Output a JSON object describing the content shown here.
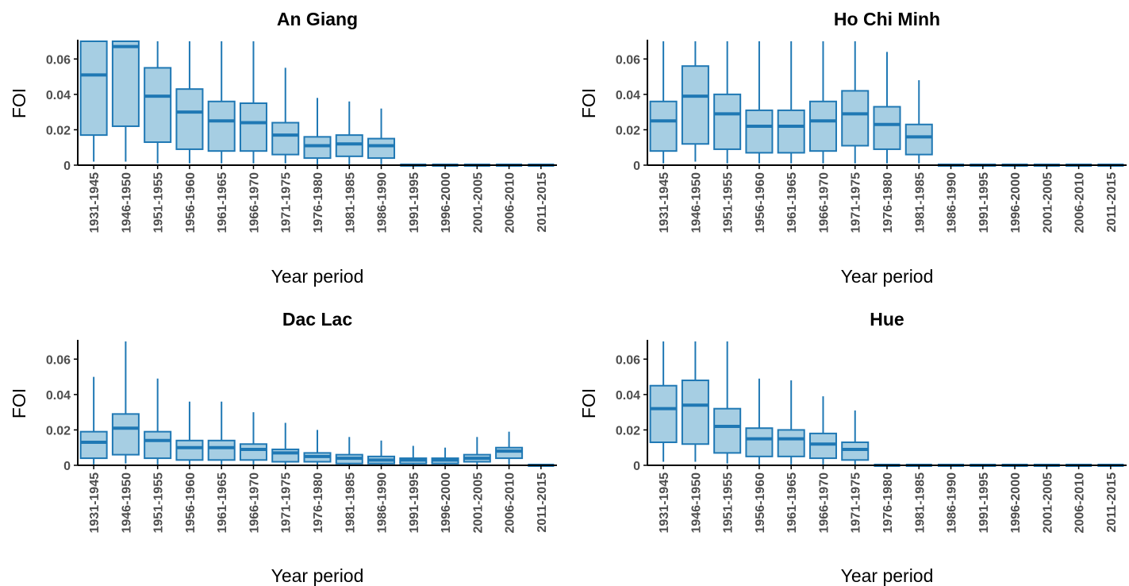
{
  "chart_data": [
    {
      "type": "boxplot",
      "title": "An Giang",
      "xlabel": "Year period",
      "ylabel": "FOI",
      "ylim": [
        0,
        0.07
      ],
      "yticks": [
        0,
        0.02,
        0.04,
        0.06
      ],
      "ytick_labels": [
        "0",
        "0.02",
        "0.04",
        "0.06"
      ],
      "box_fill": "#a6cee3",
      "box_line": "#1f78b4",
      "categories": [
        "1931-1945",
        "1946-1950",
        "1951-1955",
        "1956-1960",
        "1961-1965",
        "1966-1970",
        "1971-1975",
        "1976-1980",
        "1981-1985",
        "1986-1990",
        "1991-1995",
        "1996-2000",
        "2001-2005",
        "2006-2010",
        "2011-2015"
      ],
      "boxes": [
        {
          "min": 0.002,
          "q1": 0.017,
          "median": 0.051,
          "q3": 0.07,
          "max": 0.07
        },
        {
          "min": 0.002,
          "q1": 0.022,
          "median": 0.067,
          "q3": 0.07,
          "max": 0.07
        },
        {
          "min": 0.001,
          "q1": 0.013,
          "median": 0.039,
          "q3": 0.055,
          "max": 0.07
        },
        {
          "min": 0.001,
          "q1": 0.009,
          "median": 0.03,
          "q3": 0.043,
          "max": 0.07
        },
        {
          "min": 0.001,
          "q1": 0.008,
          "median": 0.025,
          "q3": 0.036,
          "max": 0.07
        },
        {
          "min": 0.001,
          "q1": 0.008,
          "median": 0.024,
          "q3": 0.035,
          "max": 0.07
        },
        {
          "min": 0.001,
          "q1": 0.006,
          "median": 0.017,
          "q3": 0.024,
          "max": 0.055
        },
        {
          "min": 0.0005,
          "q1": 0.004,
          "median": 0.011,
          "q3": 0.016,
          "max": 0.038
        },
        {
          "min": 0.0005,
          "q1": 0.005,
          "median": 0.012,
          "q3": 0.017,
          "max": 0.036
        },
        {
          "min": 0.0005,
          "q1": 0.004,
          "median": 0.011,
          "q3": 0.015,
          "max": 0.032
        },
        {
          "min": 0,
          "q1": 0,
          "median": 0,
          "q3": 0,
          "max": 0
        },
        {
          "min": 0,
          "q1": 0,
          "median": 0,
          "q3": 0,
          "max": 0
        },
        {
          "min": 0,
          "q1": 0,
          "median": 0,
          "q3": 0,
          "max": 0
        },
        {
          "min": 0,
          "q1": 0,
          "median": 0,
          "q3": 0,
          "max": 0
        },
        {
          "min": 0,
          "q1": 0,
          "median": 0,
          "q3": 0,
          "max": 0
        }
      ]
    },
    {
      "type": "boxplot",
      "title": "Ho Chi Minh",
      "xlabel": "Year period",
      "ylabel": "FOI",
      "ylim": [
        0,
        0.07
      ],
      "yticks": [
        0,
        0.02,
        0.04,
        0.06
      ],
      "ytick_labels": [
        "0",
        "0.02",
        "0.04",
        "0.06"
      ],
      "box_fill": "#a6cee3",
      "box_line": "#1f78b4",
      "categories": [
        "1931-1945",
        "1946-1950",
        "1951-1955",
        "1956-1960",
        "1961-1965",
        "1966-1970",
        "1971-1975",
        "1976-1980",
        "1981-1985",
        "1986-1990",
        "1991-1995",
        "1996-2000",
        "2001-2005",
        "2006-2010",
        "2011-2015"
      ],
      "boxes": [
        {
          "min": 0.001,
          "q1": 0.008,
          "median": 0.025,
          "q3": 0.036,
          "max": 0.07
        },
        {
          "min": 0.002,
          "q1": 0.012,
          "median": 0.039,
          "q3": 0.056,
          "max": 0.07
        },
        {
          "min": 0.001,
          "q1": 0.009,
          "median": 0.029,
          "q3": 0.04,
          "max": 0.07
        },
        {
          "min": 0.001,
          "q1": 0.007,
          "median": 0.022,
          "q3": 0.031,
          "max": 0.07
        },
        {
          "min": 0.001,
          "q1": 0.007,
          "median": 0.022,
          "q3": 0.031,
          "max": 0.07
        },
        {
          "min": 0.001,
          "q1": 0.008,
          "median": 0.025,
          "q3": 0.036,
          "max": 0.07
        },
        {
          "min": 0.001,
          "q1": 0.011,
          "median": 0.029,
          "q3": 0.042,
          "max": 0.07
        },
        {
          "min": 0.001,
          "q1": 0.009,
          "median": 0.023,
          "q3": 0.033,
          "max": 0.064
        },
        {
          "min": 0.001,
          "q1": 0.006,
          "median": 0.016,
          "q3": 0.023,
          "max": 0.048
        },
        {
          "min": 0,
          "q1": 0,
          "median": 0,
          "q3": 0,
          "max": 0
        },
        {
          "min": 0,
          "q1": 0,
          "median": 0,
          "q3": 0,
          "max": 0
        },
        {
          "min": 0,
          "q1": 0,
          "median": 0,
          "q3": 0,
          "max": 0
        },
        {
          "min": 0,
          "q1": 0,
          "median": 0,
          "q3": 0,
          "max": 0
        },
        {
          "min": 0,
          "q1": 0,
          "median": 0,
          "q3": 0,
          "max": 0
        },
        {
          "min": 0,
          "q1": 0,
          "median": 0,
          "q3": 0,
          "max": 0
        }
      ]
    },
    {
      "type": "boxplot",
      "title": "Dac Lac",
      "xlabel": "Year period",
      "ylabel": "FOI",
      "ylim": [
        0,
        0.07
      ],
      "yticks": [
        0,
        0.02,
        0.04,
        0.06
      ],
      "ytick_labels": [
        "0",
        "0.02",
        "0.04",
        "0.06"
      ],
      "box_fill": "#a6cee3",
      "box_line": "#1f78b4",
      "categories": [
        "1931-1945",
        "1946-1950",
        "1951-1955",
        "1956-1960",
        "1961-1965",
        "1966-1970",
        "1971-1975",
        "1976-1980",
        "1981-1985",
        "1986-1990",
        "1991-1995",
        "1996-2000",
        "2001-2005",
        "2006-2010",
        "2011-2015"
      ],
      "boxes": [
        {
          "min": 0.0005,
          "q1": 0.004,
          "median": 0.013,
          "q3": 0.019,
          "max": 0.05
        },
        {
          "min": 0.001,
          "q1": 0.006,
          "median": 0.021,
          "q3": 0.029,
          "max": 0.07
        },
        {
          "min": 0.0005,
          "q1": 0.004,
          "median": 0.014,
          "q3": 0.019,
          "max": 0.049
        },
        {
          "min": 0.0005,
          "q1": 0.003,
          "median": 0.01,
          "q3": 0.014,
          "max": 0.036
        },
        {
          "min": 0.0005,
          "q1": 0.003,
          "median": 0.01,
          "q3": 0.014,
          "max": 0.036
        },
        {
          "min": 0.0005,
          "q1": 0.003,
          "median": 0.009,
          "q3": 0.012,
          "max": 0.03
        },
        {
          "min": 0.0003,
          "q1": 0.002,
          "median": 0.007,
          "q3": 0.009,
          "max": 0.024
        },
        {
          "min": 0.0003,
          "q1": 0.002,
          "median": 0.005,
          "q3": 0.007,
          "max": 0.02
        },
        {
          "min": 0.0002,
          "q1": 0.001,
          "median": 0.004,
          "q3": 0.006,
          "max": 0.016
        },
        {
          "min": 0.0002,
          "q1": 0.001,
          "median": 0.003,
          "q3": 0.005,
          "max": 0.014
        },
        {
          "min": 0.0002,
          "q1": 0.001,
          "median": 0.003,
          "q3": 0.004,
          "max": 0.011
        },
        {
          "min": 0.0002,
          "q1": 0.001,
          "median": 0.003,
          "q3": 0.004,
          "max": 0.01
        },
        {
          "min": 0.0003,
          "q1": 0.002,
          "median": 0.004,
          "q3": 0.006,
          "max": 0.016
        },
        {
          "min": 0.0005,
          "q1": 0.004,
          "median": 0.008,
          "q3": 0.01,
          "max": 0.019
        },
        {
          "min": 0,
          "q1": 0,
          "median": 0,
          "q3": 0,
          "max": 0
        }
      ]
    },
    {
      "type": "boxplot",
      "title": "Hue",
      "xlabel": "Year period",
      "ylabel": "FOI",
      "ylim": [
        0,
        0.07
      ],
      "yticks": [
        0,
        0.02,
        0.04,
        0.06
      ],
      "ytick_labels": [
        "0",
        "0.02",
        "0.04",
        "0.06"
      ],
      "box_fill": "#a6cee3",
      "box_line": "#1f78b4",
      "categories": [
        "1931-1945",
        "1946-1950",
        "1951-1955",
        "1956-1960",
        "1961-1965",
        "1966-1970",
        "1971-1975",
        "1976-1980",
        "1981-1985",
        "1986-1990",
        "1991-1995",
        "1996-2000",
        "2001-2005",
        "2006-2010",
        "2011-2015"
      ],
      "boxes": [
        {
          "min": 0.002,
          "q1": 0.013,
          "median": 0.032,
          "q3": 0.045,
          "max": 0.07
        },
        {
          "min": 0.002,
          "q1": 0.012,
          "median": 0.034,
          "q3": 0.048,
          "max": 0.07
        },
        {
          "min": 0.001,
          "q1": 0.007,
          "median": 0.022,
          "q3": 0.032,
          "max": 0.07
        },
        {
          "min": 0.0005,
          "q1": 0.005,
          "median": 0.015,
          "q3": 0.021,
          "max": 0.049
        },
        {
          "min": 0.0005,
          "q1": 0.005,
          "median": 0.015,
          "q3": 0.02,
          "max": 0.048
        },
        {
          "min": 0.0005,
          "q1": 0.004,
          "median": 0.012,
          "q3": 0.018,
          "max": 0.039
        },
        {
          "min": 0.0005,
          "q1": 0.003,
          "median": 0.009,
          "q3": 0.013,
          "max": 0.031
        },
        {
          "min": 0,
          "q1": 0,
          "median": 0,
          "q3": 0,
          "max": 0
        },
        {
          "min": 0,
          "q1": 0,
          "median": 0,
          "q3": 0,
          "max": 0
        },
        {
          "min": 0,
          "q1": 0,
          "median": 0,
          "q3": 0,
          "max": 0
        },
        {
          "min": 0,
          "q1": 0,
          "median": 0,
          "q3": 0,
          "max": 0
        },
        {
          "min": 0,
          "q1": 0,
          "median": 0,
          "q3": 0,
          "max": 0
        },
        {
          "min": 0,
          "q1": 0,
          "median": 0,
          "q3": 0,
          "max": 0
        },
        {
          "min": 0,
          "q1": 0,
          "median": 0,
          "q3": 0,
          "max": 0
        },
        {
          "min": 0,
          "q1": 0,
          "median": 0,
          "q3": 0,
          "max": 0
        }
      ]
    }
  ]
}
